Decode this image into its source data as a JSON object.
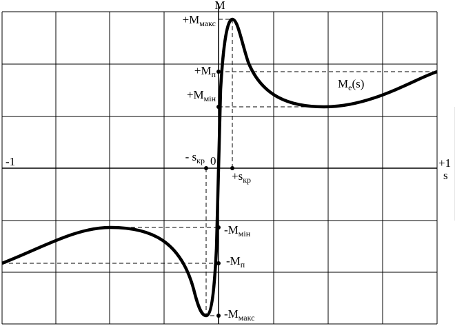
{
  "axes": {
    "y_label": "M",
    "x_label": "s",
    "x_min": "-1",
    "x_max": "+1",
    "origin": "0"
  },
  "labels": [
    {
      "text": "+M",
      "sub": "макс"
    },
    {
      "text": "+M",
      "sub": "п"
    },
    {
      "text": "+M",
      "sub": "мін"
    },
    {
      "text": "M",
      "sub": "e",
      "suffix": "(s)"
    },
    {
      "text": "- s",
      "sub": "кр"
    },
    {
      "text": "+s",
      "sub": "кр"
    },
    {
      "text": "-M",
      "sub": "мін"
    },
    {
      "text": "-M",
      "sub": "п"
    },
    {
      "text": "-M",
      "sub": "макс"
    }
  ]
}
